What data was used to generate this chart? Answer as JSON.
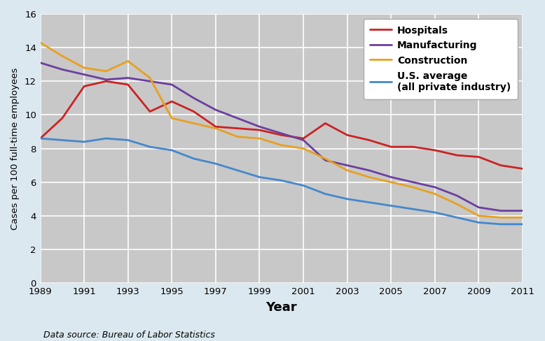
{
  "years": [
    1989,
    1990,
    1991,
    1992,
    1993,
    1994,
    1995,
    1996,
    1997,
    1998,
    1999,
    2000,
    2001,
    2002,
    2003,
    2004,
    2005,
    2006,
    2007,
    2008,
    2009,
    2010,
    2011
  ],
  "hospitals": [
    8.6,
    9.8,
    11.7,
    12.0,
    11.8,
    10.2,
    10.8,
    10.2,
    9.3,
    9.2,
    9.1,
    8.8,
    8.6,
    9.5,
    8.8,
    8.5,
    8.1,
    8.1,
    7.9,
    7.6,
    7.5,
    7.0,
    6.8
  ],
  "manufacturing": [
    13.1,
    12.7,
    12.4,
    12.1,
    12.2,
    12.0,
    11.8,
    11.0,
    10.3,
    9.8,
    9.3,
    8.9,
    8.5,
    7.3,
    7.0,
    6.7,
    6.3,
    6.0,
    5.7,
    5.2,
    4.5,
    4.3,
    4.3
  ],
  "construction": [
    14.3,
    13.5,
    12.8,
    12.6,
    13.2,
    12.2,
    9.8,
    9.5,
    9.2,
    8.7,
    8.6,
    8.2,
    8.0,
    7.4,
    6.7,
    6.3,
    6.0,
    5.7,
    5.3,
    4.7,
    4.0,
    3.9,
    3.9
  ],
  "us_average": [
    8.6,
    8.5,
    8.4,
    8.6,
    8.5,
    8.1,
    7.9,
    7.4,
    7.1,
    6.7,
    6.3,
    6.1,
    5.8,
    5.3,
    5.0,
    4.8,
    4.6,
    4.4,
    4.2,
    3.9,
    3.6,
    3.5,
    3.5
  ],
  "hospitals_color": "#cc2222",
  "manufacturing_color": "#6b3fa0",
  "construction_color": "#e8a020",
  "us_average_color": "#4488cc",
  "figure_bg_color": "#dce8f0",
  "plot_bg_color": "#c8c8c8",
  "grid_color": "#ffffff",
  "xlabel": "Year",
  "ylabel": "Cases per 100 full-time employees",
  "ylim": [
    0,
    16
  ],
  "yticks": [
    0,
    2,
    4,
    6,
    8,
    10,
    12,
    14,
    16
  ],
  "xticks": [
    1989,
    1991,
    1993,
    1995,
    1997,
    1999,
    2001,
    2003,
    2005,
    2007,
    2009,
    2011
  ],
  "legend_labels": [
    "Hospitals",
    "Manufacturing",
    "Construction",
    "U.S. average\n(all private industry)"
  ],
  "footnote": "Data source: Bureau of Labor Statistics",
  "line_width": 2.0
}
